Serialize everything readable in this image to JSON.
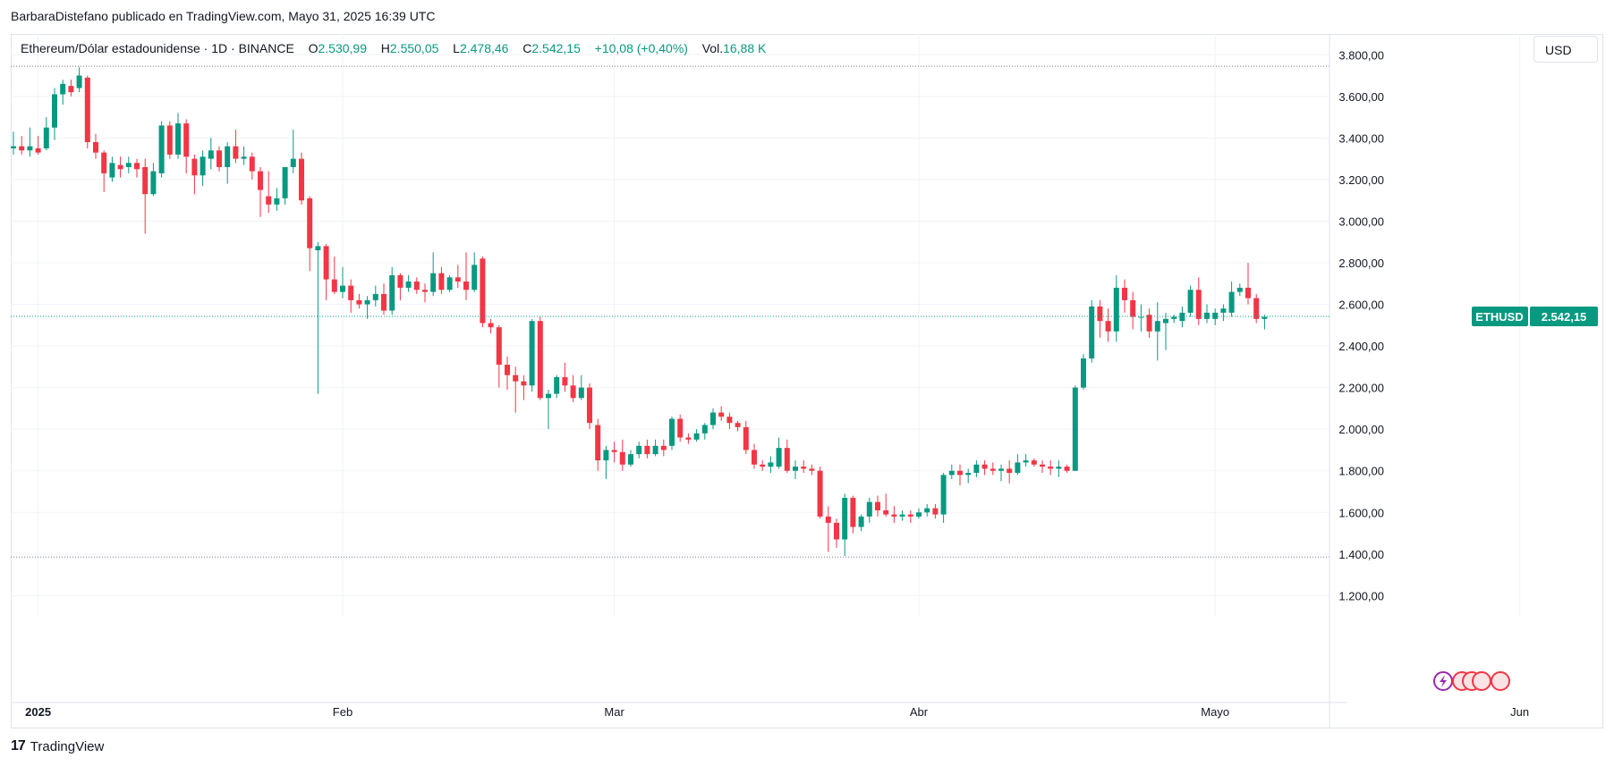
{
  "header": {
    "published_line": "BarbaraDistefano publicado en TradingView.com, Mayo 31, 2025 16:39 UTC"
  },
  "legend": {
    "symbol": "Ethereum/Dólar estadounidense · 1D · BINANCE",
    "o_label": "O",
    "o_value": "2.530,99",
    "h_label": "H",
    "h_value": "2.550,05",
    "l_label": "L",
    "l_value": "2.478,46",
    "c_label": "C",
    "c_value": "2.542,15",
    "change": "+10,08 (+0,40%)",
    "vol_label": "Vol.",
    "vol_value": "16,88 K"
  },
  "currency_button": "USD",
  "footer": {
    "brand": "TradingView",
    "logo_glyph": "17"
  },
  "colors": {
    "up": "#089981",
    "down": "#f23645",
    "grid": "#f0f3fa",
    "text": "#131722",
    "last_price_bg": "#089981"
  },
  "chart_data": {
    "type": "candlestick",
    "symbol": "ETHUSD",
    "interval": "1D",
    "y_range": [
      1150,
      3900
    ],
    "y_ticks": [
      {
        "v": 3800,
        "label": "3.800,00"
      },
      {
        "v": 3600,
        "label": "3.600,00"
      },
      {
        "v": 3400,
        "label": "3.400,00"
      },
      {
        "v": 3200,
        "label": "3.200,00"
      },
      {
        "v": 3000,
        "label": "3.000,00"
      },
      {
        "v": 2800,
        "label": "2.800,00"
      },
      {
        "v": 2600,
        "label": "2.600,00"
      },
      {
        "v": 2400,
        "label": "2.400,00"
      },
      {
        "v": 2200,
        "label": "2.200,00"
      },
      {
        "v": 2000,
        "label": "2.000,00"
      },
      {
        "v": 1800,
        "label": "1.800,00"
      },
      {
        "v": 1600,
        "label": "1.600,00"
      },
      {
        "v": 1400,
        "label": "1.400,00"
      },
      {
        "v": 1200,
        "label": "1.200,00"
      }
    ],
    "x_ticks": [
      {
        "day": 3,
        "label": "2025",
        "bold": true
      },
      {
        "day": 40,
        "label": "Feb",
        "bold": false
      },
      {
        "day": 73,
        "label": "Mar",
        "bold": false
      },
      {
        "day": 110,
        "label": "Abr",
        "bold": false
      },
      {
        "day": 146,
        "label": "Mayo",
        "bold": false
      },
      {
        "day": 183,
        "label": "Jun",
        "bold": false
      }
    ],
    "dotted_levels": [
      3745,
      1385
    ],
    "last_price": {
      "value": 2542.15,
      "label": "ETHUSD",
      "price_label": "2.542,15"
    },
    "candles": [
      {
        "day": 0,
        "o": 3350,
        "h": 3430,
        "l": 3320,
        "c": 3360
      },
      {
        "day": 1,
        "o": 3360,
        "h": 3410,
        "l": 3320,
        "c": 3340
      },
      {
        "day": 2,
        "o": 3340,
        "h": 3450,
        "l": 3310,
        "c": 3360
      },
      {
        "day": 3,
        "o": 3350,
        "h": 3410,
        "l": 3320,
        "c": 3330
      },
      {
        "day": 4,
        "o": 3350,
        "h": 3500,
        "l": 3340,
        "c": 3450
      },
      {
        "day": 5,
        "o": 3450,
        "h": 3640,
        "l": 3390,
        "c": 3610
      },
      {
        "day": 6,
        "o": 3610,
        "h": 3680,
        "l": 3560,
        "c": 3660
      },
      {
        "day": 7,
        "o": 3650,
        "h": 3680,
        "l": 3600,
        "c": 3620
      },
      {
        "day": 8,
        "o": 3640,
        "h": 3740,
        "l": 3620,
        "c": 3700
      },
      {
        "day": 9,
        "o": 3690,
        "h": 3700,
        "l": 3350,
        "c": 3380
      },
      {
        "day": 10,
        "o": 3380,
        "h": 3420,
        "l": 3300,
        "c": 3330
      },
      {
        "day": 11,
        "o": 3330,
        "h": 3340,
        "l": 3140,
        "c": 3230
      },
      {
        "day": 12,
        "o": 3210,
        "h": 3310,
        "l": 3190,
        "c": 3280
      },
      {
        "day": 13,
        "o": 3270,
        "h": 3310,
        "l": 3210,
        "c": 3250
      },
      {
        "day": 14,
        "o": 3260,
        "h": 3310,
        "l": 3230,
        "c": 3280
      },
      {
        "day": 15,
        "o": 3280,
        "h": 3300,
        "l": 3210,
        "c": 3250
      },
      {
        "day": 16,
        "o": 3260,
        "h": 3300,
        "l": 2940,
        "c": 3130
      },
      {
        "day": 17,
        "o": 3130,
        "h": 3280,
        "l": 3120,
        "c": 3240
      },
      {
        "day": 18,
        "o": 3230,
        "h": 3480,
        "l": 3210,
        "c": 3460
      },
      {
        "day": 19,
        "o": 3460,
        "h": 3480,
        "l": 3300,
        "c": 3320
      },
      {
        "day": 20,
        "o": 3320,
        "h": 3520,
        "l": 3300,
        "c": 3470
      },
      {
        "day": 21,
        "o": 3470,
        "h": 3490,
        "l": 3230,
        "c": 3310
      },
      {
        "day": 22,
        "o": 3300,
        "h": 3320,
        "l": 3130,
        "c": 3220
      },
      {
        "day": 23,
        "o": 3220,
        "h": 3340,
        "l": 3170,
        "c": 3310
      },
      {
        "day": 24,
        "o": 3300,
        "h": 3400,
        "l": 3250,
        "c": 3340
      },
      {
        "day": 25,
        "o": 3340,
        "h": 3360,
        "l": 3240,
        "c": 3260
      },
      {
        "day": 26,
        "o": 3260,
        "h": 3380,
        "l": 3180,
        "c": 3360
      },
      {
        "day": 27,
        "o": 3360,
        "h": 3440,
        "l": 3280,
        "c": 3300
      },
      {
        "day": 28,
        "o": 3300,
        "h": 3360,
        "l": 3270,
        "c": 3310
      },
      {
        "day": 29,
        "o": 3310,
        "h": 3330,
        "l": 3200,
        "c": 3240
      },
      {
        "day": 30,
        "o": 3240,
        "h": 3260,
        "l": 3020,
        "c": 3150
      },
      {
        "day": 31,
        "o": 3120,
        "h": 3240,
        "l": 3040,
        "c": 3080
      },
      {
        "day": 32,
        "o": 3080,
        "h": 3160,
        "l": 3050,
        "c": 3110
      },
      {
        "day": 33,
        "o": 3110,
        "h": 3240,
        "l": 3080,
        "c": 3260
      },
      {
        "day": 34,
        "o": 3260,
        "h": 3440,
        "l": 3230,
        "c": 3300
      },
      {
        "day": 35,
        "o": 3300,
        "h": 3330,
        "l": 3080,
        "c": 3100
      },
      {
        "day": 36,
        "o": 3110,
        "h": 3120,
        "l": 2760,
        "c": 2870
      },
      {
        "day": 37,
        "o": 2860,
        "h": 2900,
        "l": 2170,
        "c": 2880
      },
      {
        "day": 38,
        "o": 2880,
        "h": 2890,
        "l": 2620,
        "c": 2720
      },
      {
        "day": 39,
        "o": 2720,
        "h": 2830,
        "l": 2650,
        "c": 2660
      },
      {
        "day": 40,
        "o": 2660,
        "h": 2780,
        "l": 2630,
        "c": 2690
      },
      {
        "day": 41,
        "o": 2690,
        "h": 2720,
        "l": 2560,
        "c": 2620
      },
      {
        "day": 42,
        "o": 2620,
        "h": 2650,
        "l": 2580,
        "c": 2600
      },
      {
        "day": 43,
        "o": 2600,
        "h": 2640,
        "l": 2530,
        "c": 2620
      },
      {
        "day": 44,
        "o": 2620,
        "h": 2690,
        "l": 2590,
        "c": 2650
      },
      {
        "day": 45,
        "o": 2650,
        "h": 2700,
        "l": 2550,
        "c": 2570
      },
      {
        "day": 46,
        "o": 2570,
        "h": 2780,
        "l": 2550,
        "c": 2740
      },
      {
        "day": 47,
        "o": 2740,
        "h": 2750,
        "l": 2620,
        "c": 2680
      },
      {
        "day": 48,
        "o": 2680,
        "h": 2740,
        "l": 2660,
        "c": 2710
      },
      {
        "day": 49,
        "o": 2710,
        "h": 2730,
        "l": 2650,
        "c": 2670
      },
      {
        "day": 50,
        "o": 2670,
        "h": 2700,
        "l": 2610,
        "c": 2660
      },
      {
        "day": 51,
        "o": 2660,
        "h": 2850,
        "l": 2640,
        "c": 2750
      },
      {
        "day": 52,
        "o": 2750,
        "h": 2780,
        "l": 2650,
        "c": 2670
      },
      {
        "day": 53,
        "o": 2670,
        "h": 2740,
        "l": 2660,
        "c": 2730
      },
      {
        "day": 54,
        "o": 2730,
        "h": 2790,
        "l": 2680,
        "c": 2710
      },
      {
        "day": 55,
        "o": 2710,
        "h": 2850,
        "l": 2620,
        "c": 2670
      },
      {
        "day": 56,
        "o": 2670,
        "h": 2850,
        "l": 2660,
        "c": 2790
      },
      {
        "day": 57,
        "o": 2820,
        "h": 2830,
        "l": 2490,
        "c": 2510
      },
      {
        "day": 58,
        "o": 2510,
        "h": 2530,
        "l": 2460,
        "c": 2490
      },
      {
        "day": 59,
        "o": 2490,
        "h": 2500,
        "l": 2200,
        "c": 2310
      },
      {
        "day": 60,
        "o": 2310,
        "h": 2350,
        "l": 2190,
        "c": 2260
      },
      {
        "day": 61,
        "o": 2260,
        "h": 2300,
        "l": 2080,
        "c": 2230
      },
      {
        "day": 62,
        "o": 2230,
        "h": 2260,
        "l": 2140,
        "c": 2210
      },
      {
        "day": 63,
        "o": 2210,
        "h": 2530,
        "l": 2180,
        "c": 2520
      },
      {
        "day": 64,
        "o": 2520,
        "h": 2540,
        "l": 2140,
        "c": 2150
      },
      {
        "day": 65,
        "o": 2150,
        "h": 2190,
        "l": 2000,
        "c": 2170
      },
      {
        "day": 66,
        "o": 2170,
        "h": 2260,
        "l": 2150,
        "c": 2250
      },
      {
        "day": 67,
        "o": 2250,
        "h": 2320,
        "l": 2180,
        "c": 2210
      },
      {
        "day": 68,
        "o": 2210,
        "h": 2260,
        "l": 2130,
        "c": 2150
      },
      {
        "day": 69,
        "o": 2150,
        "h": 2260,
        "l": 2140,
        "c": 2200
      },
      {
        "day": 70,
        "o": 2200,
        "h": 2220,
        "l": 2000,
        "c": 2030
      },
      {
        "day": 71,
        "o": 2020,
        "h": 2050,
        "l": 1800,
        "c": 1850
      },
      {
        "day": 72,
        "o": 1850,
        "h": 1920,
        "l": 1760,
        "c": 1900
      },
      {
        "day": 73,
        "o": 1900,
        "h": 1940,
        "l": 1840,
        "c": 1890
      },
      {
        "day": 74,
        "o": 1890,
        "h": 1950,
        "l": 1800,
        "c": 1830
      },
      {
        "day": 75,
        "o": 1830,
        "h": 1900,
        "l": 1820,
        "c": 1880
      },
      {
        "day": 76,
        "o": 1880,
        "h": 1940,
        "l": 1860,
        "c": 1920
      },
      {
        "day": 77,
        "o": 1920,
        "h": 1950,
        "l": 1860,
        "c": 1880
      },
      {
        "day": 78,
        "o": 1880,
        "h": 1950,
        "l": 1870,
        "c": 1920
      },
      {
        "day": 79,
        "o": 1920,
        "h": 1950,
        "l": 1870,
        "c": 1900
      },
      {
        "day": 80,
        "o": 1920,
        "h": 2060,
        "l": 1900,
        "c": 2050
      },
      {
        "day": 81,
        "o": 2050,
        "h": 2070,
        "l": 1940,
        "c": 1960
      },
      {
        "day": 82,
        "o": 1960,
        "h": 1980,
        "l": 1930,
        "c": 1950
      },
      {
        "day": 83,
        "o": 1950,
        "h": 2000,
        "l": 1940,
        "c": 1980
      },
      {
        "day": 84,
        "o": 1980,
        "h": 2030,
        "l": 1950,
        "c": 2020
      },
      {
        "day": 85,
        "o": 2020,
        "h": 2100,
        "l": 2000,
        "c": 2080
      },
      {
        "day": 86,
        "o": 2080,
        "h": 2110,
        "l": 2040,
        "c": 2060
      },
      {
        "day": 87,
        "o": 2060,
        "h": 2080,
        "l": 2000,
        "c": 2030
      },
      {
        "day": 88,
        "o": 2030,
        "h": 2040,
        "l": 1990,
        "c": 2010
      },
      {
        "day": 89,
        "o": 2010,
        "h": 2040,
        "l": 1880,
        "c": 1900
      },
      {
        "day": 90,
        "o": 1900,
        "h": 1930,
        "l": 1810,
        "c": 1830
      },
      {
        "day": 91,
        "o": 1830,
        "h": 1850,
        "l": 1800,
        "c": 1820
      },
      {
        "day": 92,
        "o": 1820,
        "h": 1870,
        "l": 1790,
        "c": 1840
      },
      {
        "day": 93,
        "o": 1820,
        "h": 1960,
        "l": 1810,
        "c": 1910
      },
      {
        "day": 94,
        "o": 1910,
        "h": 1950,
        "l": 1790,
        "c": 1800
      },
      {
        "day": 95,
        "o": 1800,
        "h": 1850,
        "l": 1760,
        "c": 1820
      },
      {
        "day": 96,
        "o": 1820,
        "h": 1850,
        "l": 1790,
        "c": 1810
      },
      {
        "day": 97,
        "o": 1810,
        "h": 1830,
        "l": 1780,
        "c": 1800
      },
      {
        "day": 98,
        "o": 1800,
        "h": 1820,
        "l": 1570,
        "c": 1580
      },
      {
        "day": 99,
        "o": 1580,
        "h": 1630,
        "l": 1410,
        "c": 1550
      },
      {
        "day": 100,
        "o": 1550,
        "h": 1570,
        "l": 1430,
        "c": 1470
      },
      {
        "day": 101,
        "o": 1470,
        "h": 1690,
        "l": 1390,
        "c": 1670
      },
      {
        "day": 102,
        "o": 1670,
        "h": 1680,
        "l": 1500,
        "c": 1530
      },
      {
        "day": 103,
        "o": 1530,
        "h": 1590,
        "l": 1510,
        "c": 1580
      },
      {
        "day": 104,
        "o": 1580,
        "h": 1670,
        "l": 1550,
        "c": 1650
      },
      {
        "day": 105,
        "o": 1650,
        "h": 1680,
        "l": 1580,
        "c": 1610
      },
      {
        "day": 106,
        "o": 1610,
        "h": 1690,
        "l": 1580,
        "c": 1590
      },
      {
        "day": 107,
        "o": 1590,
        "h": 1630,
        "l": 1550,
        "c": 1580
      },
      {
        "day": 108,
        "o": 1580,
        "h": 1610,
        "l": 1560,
        "c": 1590
      },
      {
        "day": 109,
        "o": 1590,
        "h": 1610,
        "l": 1550,
        "c": 1580
      },
      {
        "day": 110,
        "o": 1580,
        "h": 1620,
        "l": 1570,
        "c": 1600
      },
      {
        "day": 111,
        "o": 1600,
        "h": 1640,
        "l": 1580,
        "c": 1620
      },
      {
        "day": 112,
        "o": 1620,
        "h": 1640,
        "l": 1570,
        "c": 1590
      },
      {
        "day": 113,
        "o": 1590,
        "h": 1790,
        "l": 1550,
        "c": 1780
      },
      {
        "day": 114,
        "o": 1780,
        "h": 1830,
        "l": 1760,
        "c": 1800
      },
      {
        "day": 115,
        "o": 1800,
        "h": 1830,
        "l": 1730,
        "c": 1780
      },
      {
        "day": 116,
        "o": 1780,
        "h": 1810,
        "l": 1740,
        "c": 1790
      },
      {
        "day": 117,
        "o": 1790,
        "h": 1850,
        "l": 1770,
        "c": 1830
      },
      {
        "day": 118,
        "o": 1830,
        "h": 1850,
        "l": 1780,
        "c": 1810
      },
      {
        "day": 119,
        "o": 1810,
        "h": 1840,
        "l": 1780,
        "c": 1800
      },
      {
        "day": 120,
        "o": 1800,
        "h": 1830,
        "l": 1750,
        "c": 1810
      },
      {
        "day": 121,
        "o": 1810,
        "h": 1850,
        "l": 1740,
        "c": 1790
      },
      {
        "day": 122,
        "o": 1790,
        "h": 1880,
        "l": 1780,
        "c": 1840
      },
      {
        "day": 123,
        "o": 1840,
        "h": 1880,
        "l": 1820,
        "c": 1850
      },
      {
        "day": 124,
        "o": 1850,
        "h": 1860,
        "l": 1820,
        "c": 1830
      },
      {
        "day": 125,
        "o": 1830,
        "h": 1850,
        "l": 1790,
        "c": 1820
      },
      {
        "day": 126,
        "o": 1820,
        "h": 1850,
        "l": 1780,
        "c": 1810
      },
      {
        "day": 127,
        "o": 1810,
        "h": 1850,
        "l": 1770,
        "c": 1820
      },
      {
        "day": 128,
        "o": 1820,
        "h": 1830,
        "l": 1790,
        "c": 1800
      },
      {
        "day": 129,
        "o": 1800,
        "h": 2210,
        "l": 1800,
        "c": 2200
      },
      {
        "day": 130,
        "o": 2200,
        "h": 2360,
        "l": 2190,
        "c": 2340
      },
      {
        "day": 131,
        "o": 2340,
        "h": 2620,
        "l": 2320,
        "c": 2590
      },
      {
        "day": 132,
        "o": 2590,
        "h": 2620,
        "l": 2440,
        "c": 2520
      },
      {
        "day": 133,
        "o": 2520,
        "h": 2580,
        "l": 2420,
        "c": 2470
      },
      {
        "day": 134,
        "o": 2470,
        "h": 2740,
        "l": 2420,
        "c": 2680
      },
      {
        "day": 135,
        "o": 2680,
        "h": 2720,
        "l": 2560,
        "c": 2620
      },
      {
        "day": 136,
        "o": 2620,
        "h": 2660,
        "l": 2480,
        "c": 2540
      },
      {
        "day": 137,
        "o": 2540,
        "h": 2600,
        "l": 2470,
        "c": 2540
      },
      {
        "day": 138,
        "o": 2550,
        "h": 2580,
        "l": 2440,
        "c": 2470
      },
      {
        "day": 139,
        "o": 2470,
        "h": 2610,
        "l": 2330,
        "c": 2520
      },
      {
        "day": 140,
        "o": 2510,
        "h": 2560,
        "l": 2380,
        "c": 2530
      },
      {
        "day": 141,
        "o": 2530,
        "h": 2550,
        "l": 2510,
        "c": 2540
      },
      {
        "day": 142,
        "o": 2520,
        "h": 2590,
        "l": 2490,
        "c": 2560
      },
      {
        "day": 143,
        "o": 2560,
        "h": 2690,
        "l": 2540,
        "c": 2670
      },
      {
        "day": 144,
        "o": 2670,
        "h": 2730,
        "l": 2500,
        "c": 2530
      },
      {
        "day": 145,
        "o": 2530,
        "h": 2600,
        "l": 2510,
        "c": 2560
      },
      {
        "day": 146,
        "o": 2530,
        "h": 2580,
        "l": 2500,
        "c": 2560
      },
      {
        "day": 147,
        "o": 2560,
        "h": 2600,
        "l": 2520,
        "c": 2580
      },
      {
        "day": 148,
        "o": 2560,
        "h": 2710,
        "l": 2540,
        "c": 2660
      },
      {
        "day": 149,
        "o": 2660,
        "h": 2700,
        "l": 2640,
        "c": 2680
      },
      {
        "day": 150,
        "o": 2680,
        "h": 2800,
        "l": 2600,
        "c": 2630
      },
      {
        "day": 151,
        "o": 2630,
        "h": 2650,
        "l": 2510,
        "c": 2530
      },
      {
        "day": 152,
        "o": 2530,
        "h": 2550,
        "l": 2480,
        "c": 2540
      }
    ]
  }
}
